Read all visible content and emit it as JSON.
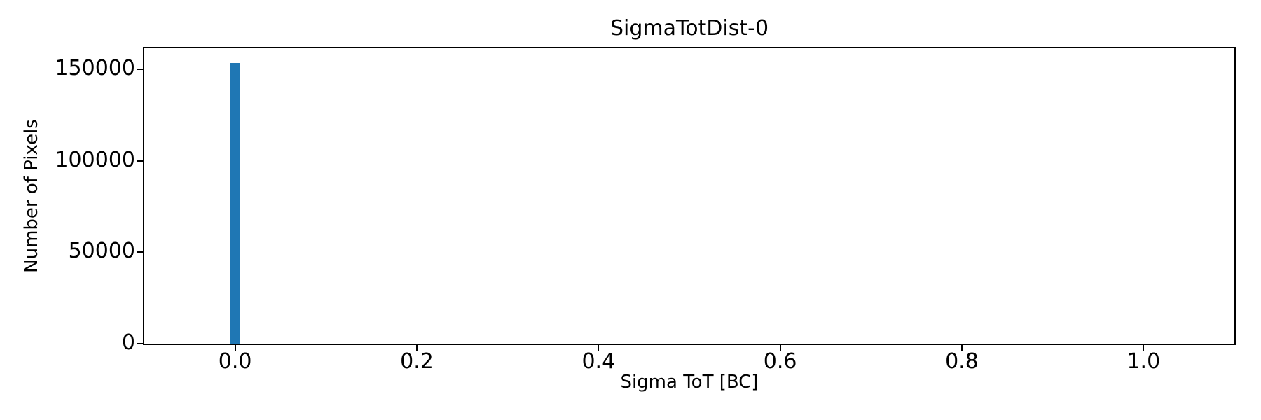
{
  "figure": {
    "background": "#ffffff"
  },
  "chart_data": {
    "type": "bar",
    "title": "SigmaTotDist-0",
    "xlabel": "Sigma ToT [BC]",
    "ylabel": "Number of Pixels",
    "xlim": [
      -0.1,
      1.1
    ],
    "ylim": [
      0,
      161400
    ],
    "grid": false,
    "xticks": [
      {
        "value": 0.0,
        "label": "0.0"
      },
      {
        "value": 0.2,
        "label": "0.2"
      },
      {
        "value": 0.4,
        "label": "0.4"
      },
      {
        "value": 0.6,
        "label": "0.6"
      },
      {
        "value": 0.8,
        "label": "0.8"
      },
      {
        "value": 1.0,
        "label": "1.0"
      }
    ],
    "yticks": [
      {
        "value": 0,
        "label": "0"
      },
      {
        "value": 50000,
        "label": "50000"
      },
      {
        "value": 100000,
        "label": "100000"
      },
      {
        "value": 150000,
        "label": "150000"
      }
    ],
    "bars": [
      {
        "x": 0.0,
        "bin_width": 0.0115,
        "value": 153400
      }
    ],
    "colors": {
      "bar": "#1f77b4",
      "axis": "#000000",
      "text": "#000000"
    }
  }
}
